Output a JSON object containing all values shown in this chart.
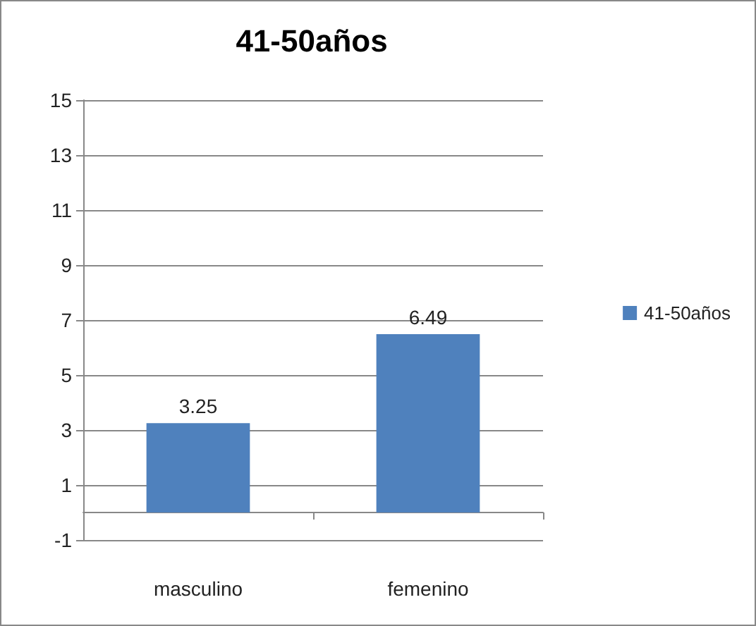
{
  "chart_data": {
    "type": "bar",
    "title": "41-50años",
    "categories": [
      "masculino",
      "femenino"
    ],
    "series": [
      {
        "name": "41-50años",
        "color": "#4f81bd",
        "values": [
          3.25,
          6.49
        ]
      }
    ],
    "ylim": [
      -1,
      15
    ],
    "yticks": [
      -1,
      1,
      3,
      5,
      7,
      9,
      11,
      13,
      15
    ],
    "grid": "y",
    "legend": "right",
    "data_labels": true
  }
}
